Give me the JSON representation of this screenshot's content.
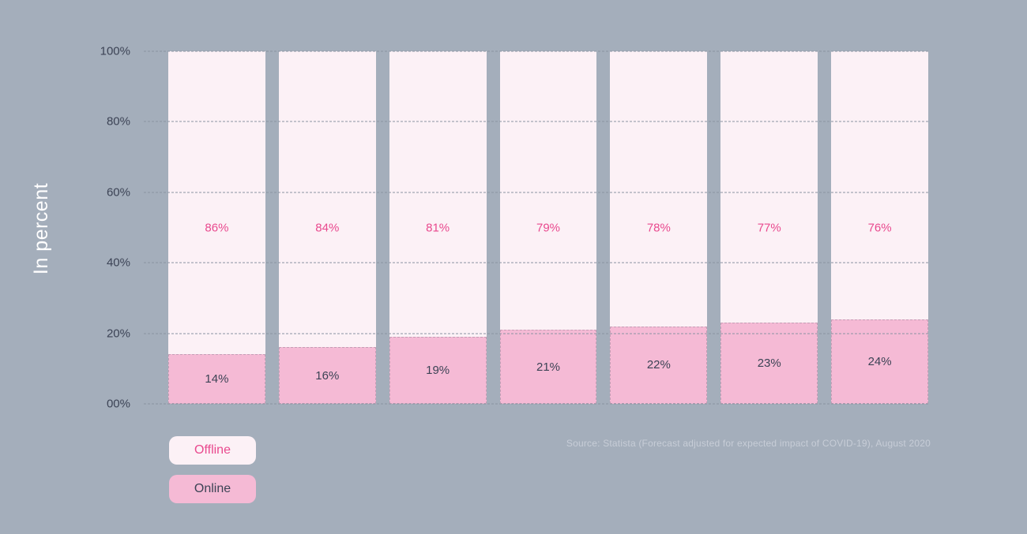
{
  "colors": {
    "background": "#a4aebb",
    "offline_fill": "#fcf1f6",
    "online_fill": "#f5bad5",
    "accent_pink": "#e9498e",
    "dark_text": "#3c4355",
    "axis_title_text": "#ffffff",
    "source_text": "#c7cdd7",
    "gridline": "#8a94a2"
  },
  "chart_data": {
    "type": "bar",
    "stacked": true,
    "orientation": "vertical",
    "categories": [
      "",
      "",
      "",
      "",
      "",
      "",
      ""
    ],
    "series": [
      {
        "name": "Offline",
        "values": [
          86,
          84,
          81,
          79,
          78,
          77,
          76
        ],
        "color": "#fcf1f6",
        "label_color": "#e9498e"
      },
      {
        "name": "Online",
        "values": [
          14,
          16,
          19,
          21,
          22,
          23,
          24
        ],
        "color": "#f5bad5",
        "label_color": "#3c4355"
      }
    ],
    "value_suffix": "%",
    "title": "",
    "xlabel": "",
    "ylabel": "In percent",
    "ylim": [
      0,
      100
    ],
    "yticks": [
      "100%",
      "80%",
      "60%",
      "40%",
      "20%",
      "00%"
    ],
    "grid": "horizontal-dashed",
    "legend_position": "bottom-left"
  },
  "legend": {
    "items": [
      {
        "label": "Offline"
      },
      {
        "label": "Online"
      }
    ]
  },
  "source": "Source: Statista (Forecast adjusted for expected impact of COVID-19), August 2020"
}
